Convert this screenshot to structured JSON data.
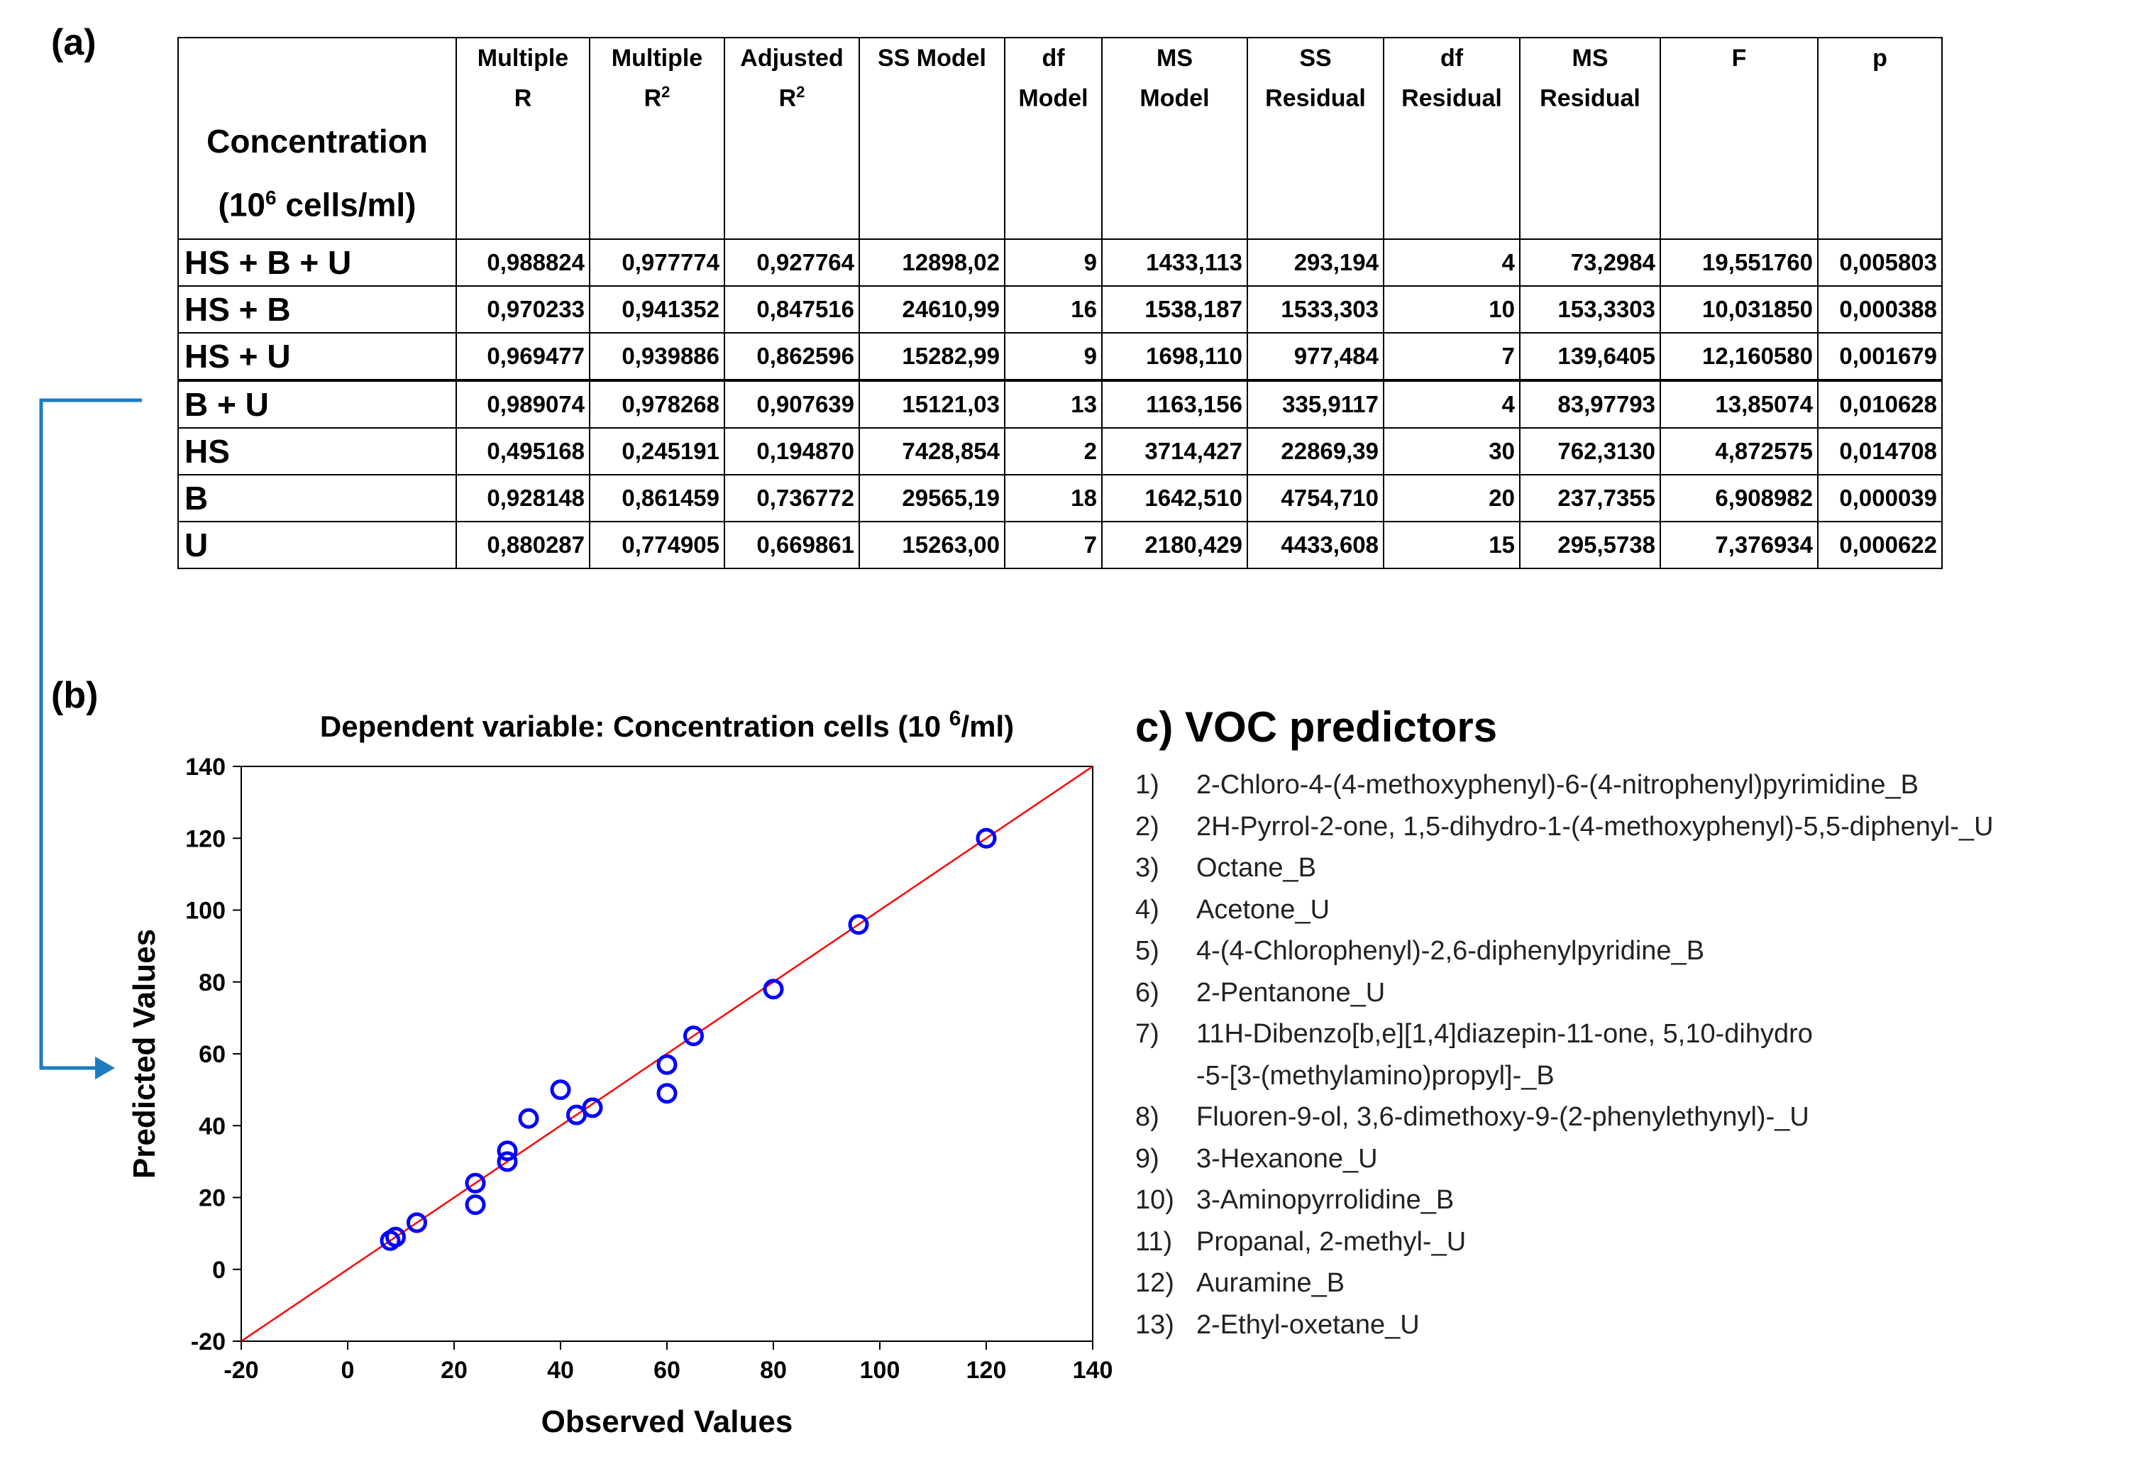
{
  "panel_labels": {
    "a": "(a)",
    "b": "(b)"
  },
  "table": {
    "row_header": {
      "line1": "Concentration",
      "line2_pre": "(10",
      "line2_sup": "6",
      "line2_post": " cells/ml)"
    },
    "columns": [
      {
        "l1": "Multiple",
        "l2": "R",
        "sup": ""
      },
      {
        "l1": "Multiple",
        "l2": "R",
        "sup": "2"
      },
      {
        "l1": "Adjusted",
        "l2": "R",
        "sup": "2"
      },
      {
        "l1": "SS Model",
        "l2": "",
        "sup": ""
      },
      {
        "l1": "df",
        "l2": "Model",
        "sup": ""
      },
      {
        "l1": "MS",
        "l2": "Model",
        "sup": ""
      },
      {
        "l1": "SS",
        "l2": "Residual",
        "sup": ""
      },
      {
        "l1": "df",
        "l2": "Residual",
        "sup": ""
      },
      {
        "l1": "MS",
        "l2": "Residual",
        "sup": ""
      },
      {
        "l1": "F",
        "l2": "",
        "sup": ""
      },
      {
        "l1": "p",
        "l2": "",
        "sup": ""
      }
    ],
    "rows": [
      {
        "group": "HS + B + U",
        "cells": [
          "0,988824",
          "0,977774",
          "0,927764",
          "12898,02",
          "9",
          "1433,113",
          "293,194",
          "4",
          "73,2984",
          "19,551760",
          "0,005803"
        ]
      },
      {
        "group": "HS + B",
        "cells": [
          "0,970233",
          "0,941352",
          "0,847516",
          "24610,99",
          "16",
          "1538,187",
          "1533,303",
          "10",
          "153,3303",
          "10,031850",
          "0,000388"
        ]
      },
      {
        "group": "HS + U",
        "cells": [
          "0,969477",
          "0,939886",
          "0,862596",
          "15282,99",
          "9",
          "1698,110",
          "977,484",
          "7",
          "139,6405",
          "12,160580",
          "0,001679"
        ]
      },
      {
        "group": "B + U",
        "cells": [
          "0,989074",
          "0,978268",
          "0,907639",
          "15121,03",
          "13",
          "1163,156",
          "335,9117",
          "4",
          "83,97793",
          "13,85074",
          "0,010628"
        ]
      },
      {
        "group": "HS",
        "cells": [
          "0,495168",
          "0,245191",
          "0,194870",
          "7428,854",
          "2",
          "3714,427",
          "22869,39",
          "30",
          "762,3130",
          "4,872575",
          "0,014708"
        ]
      },
      {
        "group": "B",
        "cells": [
          "0,928148",
          "0,861459",
          "0,736772",
          "29565,19",
          "18",
          "1642,510",
          "4754,710",
          "20",
          "237,7355",
          "6,908982",
          "0,000039"
        ]
      },
      {
        "group": "U",
        "cells": [
          "0,880287",
          "0,774905",
          "0,669861",
          "15263,00",
          "7",
          "2180,429",
          "4433,608",
          "15",
          "295,5738",
          "7,376934",
          "0,000622"
        ]
      }
    ]
  },
  "colors": {
    "line": "#ff0000",
    "points": "#0000ff",
    "connector": "#1f7bc1"
  },
  "chart_data": {
    "type": "scatter",
    "title_pre": "Dependent variable: Concentration cells (10 ",
    "title_sup": "6",
    "title_post": "/ml)",
    "xlabel": "Observed Values",
    "ylabel": "Predicted Values",
    "xlim": [
      -20,
      140
    ],
    "ylim": [
      -20,
      140
    ],
    "xticks": [
      -20,
      0,
      20,
      40,
      60,
      80,
      100,
      120,
      140
    ],
    "yticks": [
      -20,
      0,
      20,
      40,
      60,
      80,
      100,
      120,
      140
    ],
    "grid": false,
    "fit_line": {
      "slope": 1,
      "intercept": 0
    },
    "points": [
      {
        "x": 8,
        "y": 8
      },
      {
        "x": 9,
        "y": 9
      },
      {
        "x": 13,
        "y": 13
      },
      {
        "x": 24,
        "y": 24
      },
      {
        "x": 24,
        "y": 18
      },
      {
        "x": 30,
        "y": 30
      },
      {
        "x": 30,
        "y": 33
      },
      {
        "x": 34,
        "y": 42
      },
      {
        "x": 40,
        "y": 50
      },
      {
        "x": 43,
        "y": 43
      },
      {
        "x": 46,
        "y": 45
      },
      {
        "x": 60,
        "y": 49
      },
      {
        "x": 60,
        "y": 57
      },
      {
        "x": 65,
        "y": 65
      },
      {
        "x": 80,
        "y": 78
      },
      {
        "x": 96,
        "y": 96
      },
      {
        "x": 120,
        "y": 120
      }
    ]
  },
  "voc": {
    "title": "c) VOC predictors",
    "items": [
      {
        "num": "1)",
        "text": "2-Chloro-4-(4-methoxyphenyl)-6-(4-nitrophenyl)pyrimidine_B"
      },
      {
        "num": "2)",
        "text": "2H-Pyrrol-2-one, 1,5-dihydro-1-(4-methoxyphenyl)-5,5-diphenyl-_U"
      },
      {
        "num": "3)",
        "text": "Octane_B"
      },
      {
        "num": "4)",
        "text": "Acetone_U"
      },
      {
        "num": "5)",
        "text": "4-(4-Chlorophenyl)-2,6-diphenylpyridine_B"
      },
      {
        "num": "6)",
        "text": "2-Pentanone_U"
      },
      {
        "num": "7)",
        "text": "11H-Dibenzo[b,e][1,4]diazepin-11-one, 5,10-dihydro\n-5-[3-(methylamino)propyl]-_B"
      },
      {
        "num": "8)",
        "text": "Fluoren-9-ol, 3,6-dimethoxy-9-(2-phenylethynyl)-_U"
      },
      {
        "num": "9)",
        "text": "3-Hexanone_U"
      },
      {
        "num": "10)",
        "text": "3-Aminopyrrolidine_B"
      },
      {
        "num": "11)",
        "text": "Propanal, 2-methyl-_U"
      },
      {
        "num": "12)",
        "text": "Auramine_B"
      },
      {
        "num": "13)",
        "text": "2-Ethyl-oxetane_U"
      }
    ]
  }
}
